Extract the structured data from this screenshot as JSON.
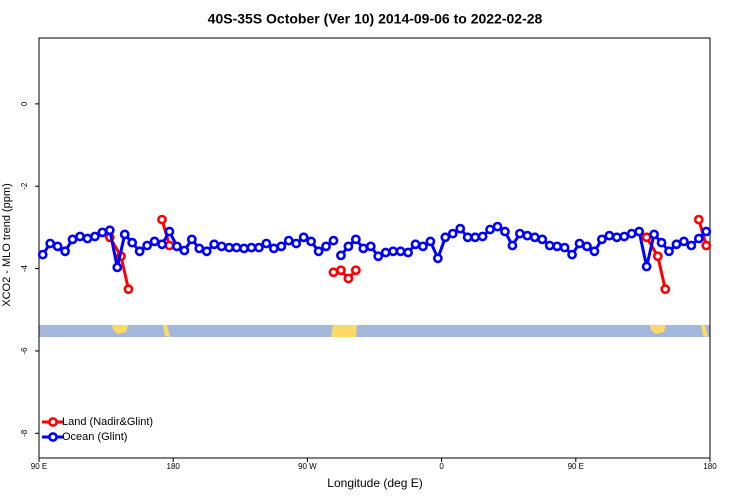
{
  "chart_data": {
    "type": "line",
    "title": "40S-35S October (Ver 10)   2014-09-06 to 2022-02-28",
    "x_label": "Longitude (deg E)",
    "y_label": "XCO2 - MLO trend (ppm)",
    "xlim": [
      90,
      540
    ],
    "xticks": [
      {
        "value": 90,
        "label": "90 E"
      },
      180,
      {
        "value": 270,
        "label": "90 W"
      },
      {
        "value": 360,
        "label": "0"
      },
      {
        "value": 450,
        "label": "90 E"
      },
      {
        "value": 540,
        "label": "180"
      }
    ],
    "ylim": [
      -8.6,
      1.6
    ],
    "yticks": [
      0,
      -2,
      -4,
      -6,
      -8
    ],
    "legend": "bottom-left",
    "series": [
      {
        "name": "Land (Nadir&Glint)",
        "color": "#ff0000",
        "x": [
          137.5,
          145,
          150,
          160,
          172.5,
          177.5,
          230,
          287.5,
          292.5,
          297.5,
          302.5,
          400,
          497.5,
          505,
          510,
          520,
          532.5,
          537.5
        ],
        "values": [
          -3.24,
          -3.7,
          -4.5,
          null,
          -2.81,
          -3.44,
          null,
          -4.09,
          -4.04,
          -4.24,
          -4.04,
          null,
          -3.24,
          -3.7,
          -4.5,
          null,
          -2.81,
          -3.44
        ]
      },
      {
        "name": "Ocean (Glint)",
        "color": "#0000ff",
        "x": [
          92.5,
          97.5,
          102.5,
          107.5,
          112.5,
          117.5,
          122.5,
          127.5,
          132.5,
          137.5,
          142.5,
          147.5,
          152.5,
          157.5,
          162.5,
          167.5,
          172.5,
          177.5,
          182.5,
          187.5,
          192.5,
          197.5,
          202.5,
          207.5,
          212.5,
          217.5,
          222.5,
          227.5,
          232.5,
          237.5,
          242.5,
          247.5,
          252.5,
          257.5,
          262.5,
          267.5,
          272.5,
          277.5,
          282.5,
          287.5,
          290,
          292.5,
          297.5,
          302.5,
          307.5,
          312.5,
          317.5,
          322.5,
          327.5,
          332.5,
          337.5,
          342.5,
          347.5,
          352.5,
          357.5,
          362.5,
          367.5,
          372.5,
          377.5,
          382.5,
          387.5,
          392.5,
          397.5,
          402.5,
          407.5,
          412.5,
          417.5,
          422.5,
          427.5,
          432.5,
          437.5,
          442.5,
          447.5,
          452.5,
          457.5,
          462.5,
          467.5,
          472.5,
          477.5,
          482.5,
          487.5,
          492.5,
          497.5,
          502.5,
          507.5,
          512.5,
          517.5,
          522.5,
          527.5,
          532.5,
          537.5
        ],
        "values": [
          -3.66,
          -3.39,
          -3.46,
          -3.58,
          -3.29,
          -3.22,
          -3.27,
          -3.22,
          -3.12,
          -3.07,
          -3.97,
          -3.17,
          -3.37,
          -3.58,
          -3.44,
          -3.34,
          -3.41,
          -3.1,
          -3.46,
          -3.56,
          -3.29,
          -3.51,
          -3.58,
          -3.41,
          -3.46,
          -3.49,
          -3.49,
          -3.51,
          -3.49,
          -3.49,
          -3.39,
          -3.51,
          -3.46,
          -3.32,
          -3.39,
          -3.24,
          -3.34,
          -3.58,
          -3.46,
          -3.32,
          null,
          -3.68,
          -3.46,
          -3.29,
          -3.51,
          -3.46,
          -3.7,
          -3.61,
          -3.58,
          -3.58,
          -3.61,
          -3.41,
          -3.46,
          -3.34,
          -3.75,
          -3.24,
          -3.15,
          -3.03,
          -3.24,
          -3.24,
          -3.22,
          -3.05,
          -2.98,
          -3.1,
          -3.44,
          -3.15,
          -3.2,
          -3.24,
          -3.29,
          -3.44,
          -3.46,
          -3.49,
          -3.66,
          -3.39,
          -3.46,
          -3.58,
          -3.29,
          -3.2,
          -3.24,
          -3.22,
          -3.15,
          -3.1,
          -3.95,
          -3.17,
          -3.37,
          -3.58,
          -3.41,
          -3.34,
          -3.44,
          -3.27,
          -3.1
        ]
      }
    ]
  }
}
